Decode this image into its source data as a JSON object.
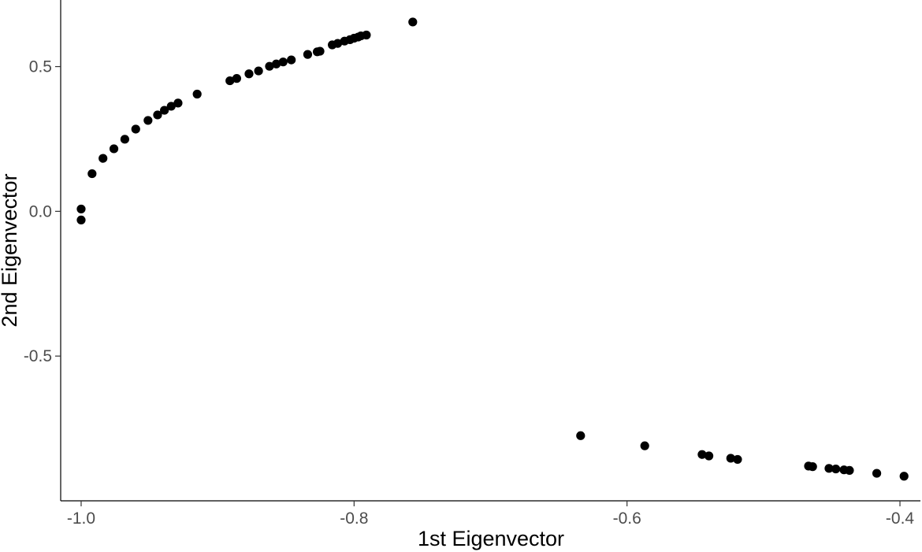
{
  "chart_data": {
    "type": "scatter",
    "title": "",
    "xlabel": "1st Eigenvector",
    "ylabel": "2nd Eigenvector",
    "xlim": [
      -1.015,
      -0.385
    ],
    "ylim": [
      -1.0,
      0.73
    ],
    "x_ticks": [
      -1.0,
      -0.8,
      -0.6,
      -0.4
    ],
    "x_tick_labels": [
      "-1.0",
      "-0.8",
      "-0.6",
      "-0.4"
    ],
    "y_ticks": [
      -0.5,
      0.0,
      0.5
    ],
    "y_tick_labels": [
      "-0.5",
      "0.0",
      "0.5"
    ],
    "grid": false,
    "legend": "none",
    "point_color": "#000000",
    "points": [
      {
        "x": -1.0,
        "y": 0.008
      },
      {
        "x": -1.0,
        "y": -0.03
      },
      {
        "x": -0.992,
        "y": 0.13
      },
      {
        "x": -0.984,
        "y": 0.183
      },
      {
        "x": -0.976,
        "y": 0.216
      },
      {
        "x": -0.968,
        "y": 0.249
      },
      {
        "x": -0.96,
        "y": 0.284
      },
      {
        "x": -0.951,
        "y": 0.314
      },
      {
        "x": -0.944,
        "y": 0.333
      },
      {
        "x": -0.939,
        "y": 0.349
      },
      {
        "x": -0.934,
        "y": 0.363
      },
      {
        "x": -0.929,
        "y": 0.374
      },
      {
        "x": -0.915,
        "y": 0.405
      },
      {
        "x": -0.891,
        "y": 0.451
      },
      {
        "x": -0.886,
        "y": 0.459
      },
      {
        "x": -0.877,
        "y": 0.475
      },
      {
        "x": -0.87,
        "y": 0.485
      },
      {
        "x": -0.862,
        "y": 0.501
      },
      {
        "x": -0.857,
        "y": 0.509
      },
      {
        "x": -0.852,
        "y": 0.516
      },
      {
        "x": -0.846,
        "y": 0.523
      },
      {
        "x": -0.834,
        "y": 0.542
      },
      {
        "x": -0.827,
        "y": 0.551
      },
      {
        "x": -0.825,
        "y": 0.553
      },
      {
        "x": -0.816,
        "y": 0.575
      },
      {
        "x": -0.812,
        "y": 0.58
      },
      {
        "x": -0.807,
        "y": 0.588
      },
      {
        "x": -0.803,
        "y": 0.593
      },
      {
        "x": -0.8,
        "y": 0.598
      },
      {
        "x": -0.797,
        "y": 0.602
      },
      {
        "x": -0.795,
        "y": 0.606
      },
      {
        "x": -0.791,
        "y": 0.609
      },
      {
        "x": -0.757,
        "y": 0.654
      },
      {
        "x": -0.634,
        "y": -0.775
      },
      {
        "x": -0.587,
        "y": -0.81
      },
      {
        "x": -0.545,
        "y": -0.84
      },
      {
        "x": -0.54,
        "y": -0.845
      },
      {
        "x": -0.524,
        "y": -0.853
      },
      {
        "x": -0.519,
        "y": -0.857
      },
      {
        "x": -0.467,
        "y": -0.88
      },
      {
        "x": -0.464,
        "y": -0.882
      },
      {
        "x": -0.452,
        "y": -0.888
      },
      {
        "x": -0.447,
        "y": -0.89
      },
      {
        "x": -0.441,
        "y": -0.893
      },
      {
        "x": -0.437,
        "y": -0.895
      },
      {
        "x": -0.417,
        "y": -0.905
      },
      {
        "x": -0.397,
        "y": -0.915
      }
    ]
  }
}
